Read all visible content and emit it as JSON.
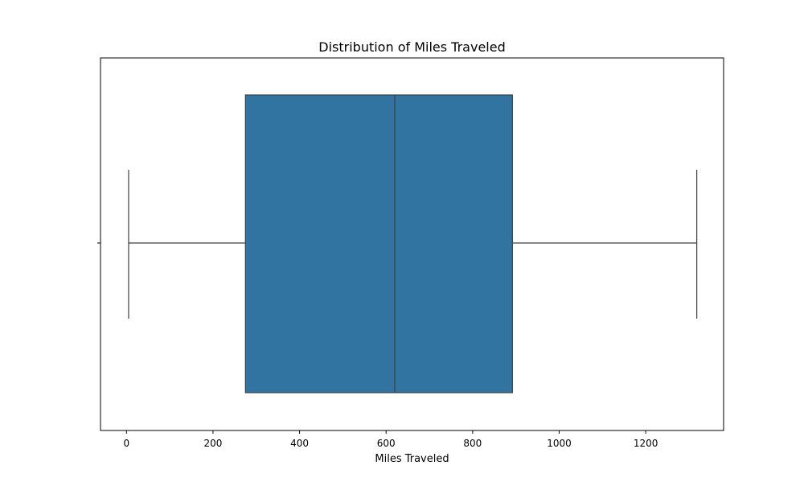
{
  "chart_data": {
    "type": "box",
    "title": "Distribution of Miles Traveled",
    "xlabel": "Miles Traveled",
    "ylabel": "",
    "xlim": [
      -60,
      1380
    ],
    "x_ticks": [
      0,
      200,
      400,
      600,
      800,
      1000,
      1200
    ],
    "x_tick_labels": [
      "0",
      "200",
      "400",
      "600",
      "800",
      "1000",
      "1200"
    ],
    "grid": false,
    "orientation": "horizontal",
    "box": {
      "whisker_low": 5,
      "q1": 275,
      "median": 620,
      "q3": 892,
      "whisker_high": 1318
    },
    "colors": {
      "box_fill": "#3274a1",
      "line": "#3f3f3f",
      "axis": "#000000"
    }
  }
}
